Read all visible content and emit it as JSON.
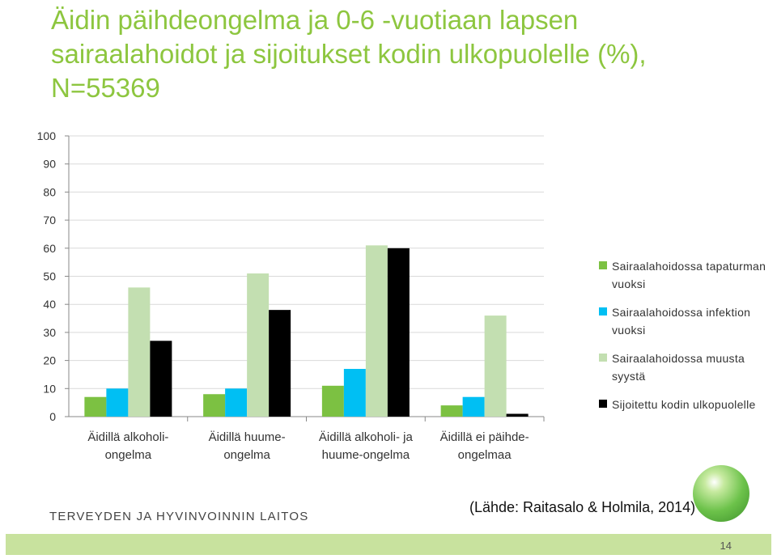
{
  "title": "Äidin päihdeongelma ja 0-6 -vuotiaan lapsen sairaalahoidot ja sijoitukset kodin ulkopuolelle (%), N=55369",
  "source": "(Lähde: Raitasalo & Holmila, 2014)",
  "organization": "TERVEYDEN JA HYVINVOINNIN LAITOS",
  "page_number": "14",
  "colors": {
    "title": "#8dc63f",
    "bottom_bar": "#c8e29e"
  },
  "chart_data": {
    "type": "bar",
    "ylim": [
      0,
      100
    ],
    "yticks": [
      "0",
      "10",
      "20",
      "30",
      "40",
      "50",
      "60",
      "70",
      "80",
      "90",
      "100"
    ],
    "grid": true,
    "legend_position": "right",
    "categories": [
      [
        "Äidillä alkoholi-",
        "ongelma"
      ],
      [
        "Äidillä huume-",
        "ongelma"
      ],
      [
        "Äidillä alkoholi- ja",
        "huume-ongelma"
      ],
      [
        "Äidillä ei päihde-",
        "ongelmaa"
      ]
    ],
    "series": [
      {
        "name": "Sairaalahoidossa tapaturman vuoksi",
        "color": "#7cc142",
        "values": [
          7,
          8,
          11,
          4
        ]
      },
      {
        "name": "Sairaalahoidossa infektion vuoksi",
        "color": "#00bff3",
        "values": [
          10,
          10,
          17,
          7
        ]
      },
      {
        "name": "Sairaalahoidossa muusta syystä",
        "color": "#c3dfb1",
        "values": [
          46,
          51,
          61,
          36
        ]
      },
      {
        "name": "Sijoitettu kodin ulkopuolelle",
        "color": "#000000",
        "values": [
          27,
          38,
          60,
          1
        ]
      }
    ]
  }
}
